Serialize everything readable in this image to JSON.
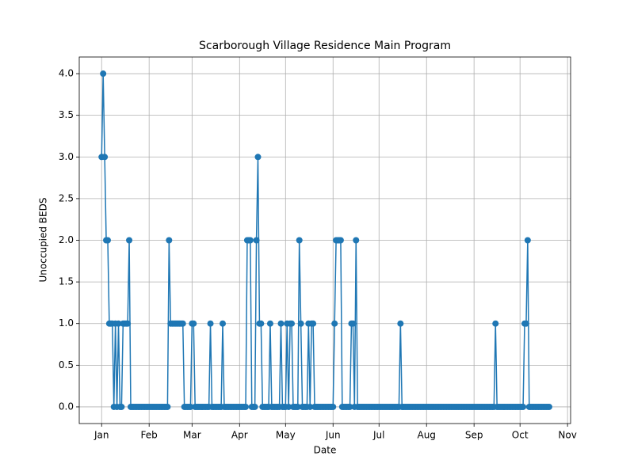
{
  "chart_data": {
    "type": "line",
    "title": "Scarborough Village Residence Main Program",
    "xlabel": "Date",
    "ylabel": "Unoccupied BEDS",
    "x": [
      0,
      1,
      2,
      3,
      4,
      5,
      6,
      7,
      8,
      9,
      10,
      11,
      12,
      13,
      14,
      15,
      16,
      17,
      18,
      19,
      20,
      21,
      22,
      23,
      24,
      25,
      26,
      27,
      28,
      29,
      30,
      31,
      32,
      33,
      34,
      35,
      36,
      37,
      38,
      39,
      40,
      41,
      42,
      43,
      44,
      45,
      46,
      47,
      48,
      49,
      50,
      51,
      52,
      53,
      54,
      55,
      56,
      57,
      58,
      59,
      60,
      61,
      62,
      63,
      64,
      65,
      66,
      67,
      68,
      69,
      70,
      71,
      72,
      73,
      74,
      75,
      76,
      77,
      78,
      79,
      80,
      81,
      82,
      83,
      84,
      85,
      86,
      87,
      88,
      89,
      90,
      91,
      92,
      93,
      94,
      95,
      96,
      97,
      98,
      99,
      100,
      101,
      102,
      103,
      104,
      105,
      106,
      107,
      108,
      109,
      110,
      111,
      112,
      113,
      114,
      115,
      116,
      117,
      118,
      119,
      120,
      121,
      122,
      123,
      124,
      125,
      126,
      127,
      128,
      129,
      130,
      131,
      132,
      133,
      134,
      135,
      136,
      137,
      138,
      139,
      140,
      141,
      142,
      143,
      144,
      145,
      146,
      147,
      148,
      149,
      150,
      151,
      152,
      153,
      154,
      155,
      156,
      157,
      158,
      159,
      160,
      161,
      162,
      163,
      164,
      165,
      166,
      167,
      168,
      169,
      170,
      171,
      172,
      173,
      174,
      175,
      176,
      177,
      178,
      179,
      180,
      181,
      182,
      183,
      184,
      185,
      186,
      187,
      188,
      189,
      190,
      191,
      192,
      193,
      194,
      195,
      196,
      197,
      198,
      199,
      200,
      201,
      202,
      203,
      204,
      205,
      206,
      207,
      208,
      209,
      210,
      211,
      212,
      213,
      214,
      215,
      216,
      217,
      218,
      219,
      220,
      221,
      222,
      223,
      224,
      225,
      226,
      227,
      228,
      229,
      230,
      231,
      232,
      233,
      234,
      235,
      236,
      237,
      238,
      239,
      240,
      241,
      242,
      243,
      244,
      245,
      246,
      247,
      248,
      249,
      250,
      251,
      252,
      253,
      254,
      255,
      256,
      257,
      258,
      259,
      260,
      261,
      262,
      263,
      264,
      265,
      266,
      267,
      268,
      269,
      270,
      271,
      272,
      273,
      274,
      275,
      276,
      277,
      278,
      279,
      280,
      281,
      282,
      283,
      284,
      285,
      286,
      287,
      288,
      289,
      290,
      291,
      292
    ],
    "series": [
      {
        "name": "Unoccupied BEDS",
        "color": "#1f77b4",
        "values": [
          3,
          4,
          3,
          2,
          2,
          1,
          1,
          1,
          0,
          1,
          0,
          1,
          0,
          0,
          1,
          1,
          1,
          1,
          2,
          0,
          0,
          0,
          0,
          0,
          0,
          0,
          0,
          0,
          0,
          0,
          0,
          0,
          0,
          0,
          0,
          0,
          0,
          0,
          0,
          0,
          0,
          0,
          0,
          0,
          2,
          1,
          1,
          1,
          1,
          1,
          1,
          1,
          1,
          1,
          0,
          0,
          0,
          0,
          0,
          1,
          1,
          0,
          0,
          0,
          0,
          0,
          0,
          0,
          0,
          0,
          0,
          1,
          0,
          0,
          0,
          0,
          0,
          0,
          0,
          1,
          0,
          0,
          0,
          0,
          0,
          0,
          0,
          0,
          0,
          0,
          0,
          0,
          0,
          0,
          0,
          2,
          2,
          2,
          0,
          0,
          0,
          2,
          3,
          1,
          1,
          0,
          0,
          0,
          0,
          0,
          1,
          0,
          0,
          0,
          0,
          0,
          0,
          1,
          0,
          0,
          0,
          1,
          0,
          1,
          1,
          0,
          0,
          0,
          0,
          2,
          1,
          0,
          0,
          0,
          0,
          1,
          0,
          1,
          1,
          0,
          0,
          0,
          0,
          0,
          0,
          0,
          0,
          0,
          0,
          0,
          0,
          0,
          1,
          2,
          2,
          2,
          2,
          0,
          0,
          0,
          0,
          0,
          0,
          1,
          1,
          0,
          2,
          0,
          0,
          0,
          0,
          0,
          0,
          0,
          0,
          0,
          0,
          0,
          0,
          0,
          0,
          0,
          0,
          0,
          0,
          0,
          0,
          0,
          0,
          0,
          0,
          0,
          0,
          0,
          0,
          1,
          0,
          0,
          0,
          0,
          0,
          0,
          0,
          0,
          0,
          0,
          0,
          0,
          0,
          0,
          0,
          0,
          0,
          0,
          0,
          0,
          0,
          0,
          0,
          0,
          0,
          0,
          0,
          0,
          0,
          0,
          0,
          0,
          0,
          0,
          0,
          0,
          0,
          0,
          0,
          0,
          0,
          0,
          0,
          0,
          0,
          0,
          0,
          0,
          0,
          0,
          0,
          0,
          0,
          0,
          0,
          0,
          0,
          0,
          0,
          0,
          0,
          1,
          0,
          0,
          0,
          0,
          0,
          0,
          0,
          0,
          0,
          0,
          0,
          0,
          0,
          0,
          0,
          0,
          0,
          0,
          1,
          1,
          2,
          0,
          0,
          0,
          0,
          0,
          0,
          0,
          0,
          0,
          0,
          0,
          0,
          0,
          0
        ]
      }
    ],
    "xlim": [
      -14.6,
      306
    ],
    "xticks": [
      {
        "value": 0,
        "label": "Jan"
      },
      {
        "value": 31,
        "label": "Feb"
      },
      {
        "value": 59,
        "label": "Mar"
      },
      {
        "value": 90,
        "label": "Apr"
      },
      {
        "value": 120,
        "label": "May"
      },
      {
        "value": 151,
        "label": "Jun"
      },
      {
        "value": 181,
        "label": "Jul"
      },
      {
        "value": 212,
        "label": "Aug"
      },
      {
        "value": 243,
        "label": "Sep"
      },
      {
        "value": 273,
        "label": "Oct"
      },
      {
        "value": 304,
        "label": "Nov"
      }
    ],
    "ylim": [
      -0.2,
      4.2
    ],
    "yticks": [
      {
        "value": 0,
        "label": "0.0"
      },
      {
        "value": 0.5,
        "label": "0.5"
      },
      {
        "value": 1,
        "label": "1.0"
      },
      {
        "value": 1.5,
        "label": "1.5"
      },
      {
        "value": 2,
        "label": "2.0"
      },
      {
        "value": 2.5,
        "label": "2.5"
      },
      {
        "value": 3,
        "label": "3.0"
      },
      {
        "value": 3.5,
        "label": "3.5"
      },
      {
        "value": 4,
        "label": "4.0"
      }
    ],
    "grid": true,
    "marker": true
  }
}
